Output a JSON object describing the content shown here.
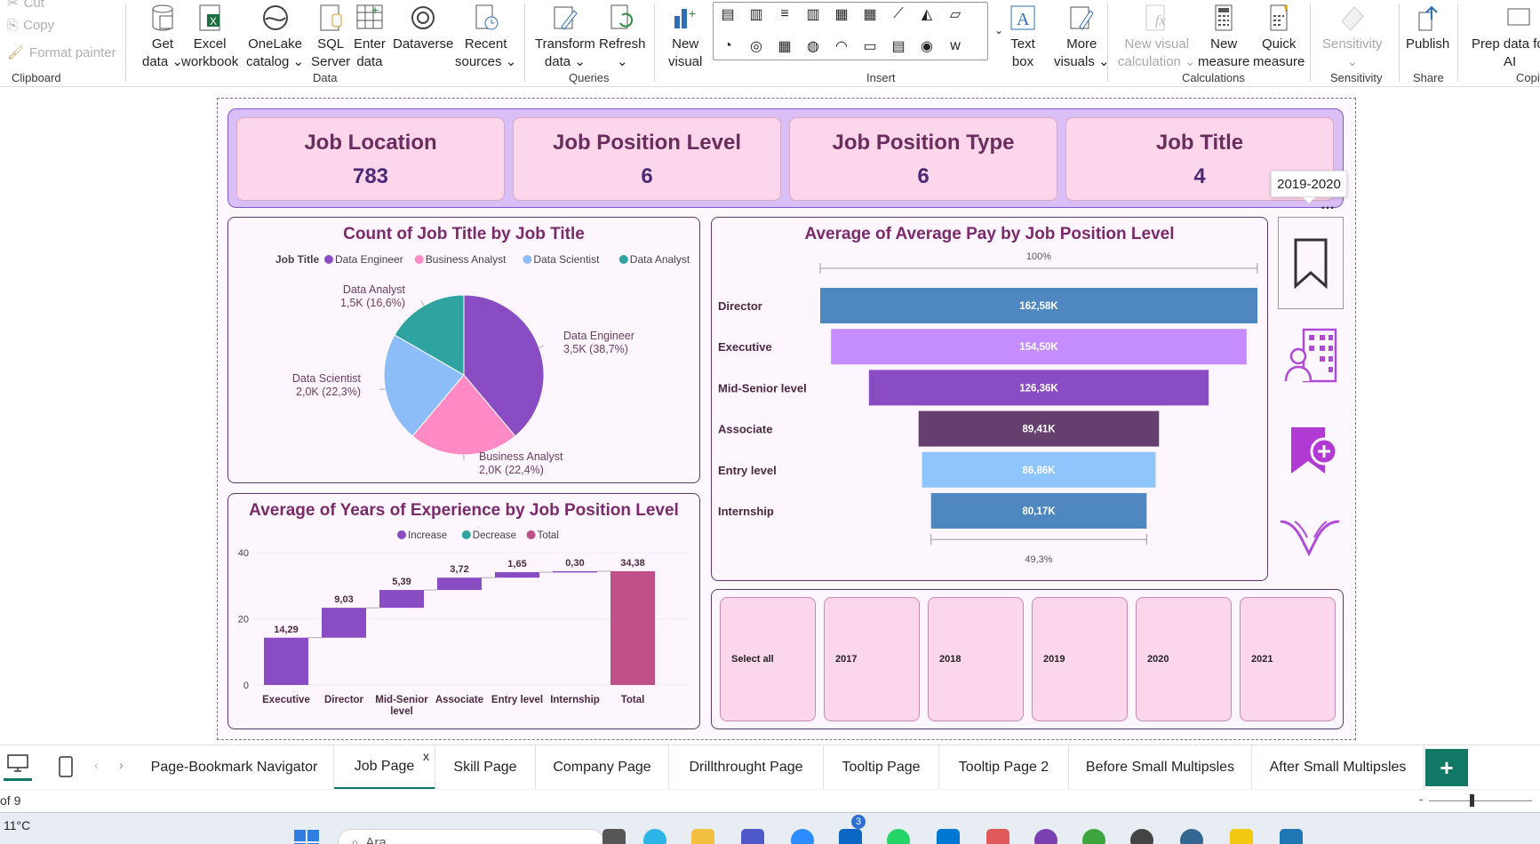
{
  "ribbon": {
    "clipboard": {
      "cut": "Cut",
      "copy": "Copy",
      "format_painter": "Format painter",
      "group": "Clipboard"
    },
    "data": {
      "buttons": [
        {
          "line1": "Get",
          "line2": "data"
        },
        {
          "line1": "Excel",
          "line2": "workbook"
        },
        {
          "line1": "OneLake",
          "line2": "catalog"
        },
        {
          "line1": "SQL",
          "line2": "Server"
        },
        {
          "line1": "Enter",
          "line2": "data"
        },
        {
          "line1": "Dataverse",
          "line2": ""
        },
        {
          "line1": "Recent",
          "line2": "sources"
        }
      ],
      "group": "Data"
    },
    "queries": {
      "buttons": [
        {
          "line1": "Transform",
          "line2": "data"
        },
        {
          "line1": "Refresh",
          "line2": ""
        }
      ],
      "group": "Queries"
    },
    "insert": {
      "new_visual": {
        "line1": "New",
        "line2": "visual"
      },
      "text_box": {
        "line1": "Text",
        "line2": "box"
      },
      "more_visuals": {
        "line1": "More",
        "line2": "visuals"
      },
      "group": "Insert"
    },
    "calculations": {
      "buttons": [
        {
          "line1": "New visual",
          "line2": "calculation"
        },
        {
          "line1": "New",
          "line2": "measure"
        },
        {
          "line1": "Quick",
          "line2": "measure"
        }
      ],
      "group": "Calculations"
    },
    "sensitivity": {
      "label": "Sensitivity",
      "group": "Sensitivity"
    },
    "share": {
      "label": "Publish",
      "group": "Share"
    },
    "copilot": {
      "line1": "Prep data fo",
      "line2": "AI",
      "group": "Copi"
    }
  },
  "kpis": [
    {
      "title": "Job Location",
      "value": "783"
    },
    {
      "title": "Job Position Level",
      "value": "6"
    },
    {
      "title": "Job Position Type",
      "value": "6"
    },
    {
      "title": "Job Title",
      "value": "4"
    }
  ],
  "tooltip": "2019-2020",
  "pie": {
    "title": "Count of Job Title by Job Title",
    "legend_title": "Job Title",
    "slice_labels": [
      {
        "name": "Data Engineer",
        "value": "3,5K (38,7%)"
      },
      {
        "name": "Business Analyst",
        "value": "2,0K (22,4%)"
      },
      {
        "name": "Data Scientist",
        "value": "2,0K (22,3%)"
      },
      {
        "name": "Data Analyst",
        "value": "1,5K (16,6%)"
      }
    ]
  },
  "funnel": {
    "title": "Average of Average Pay by Job Position Level",
    "top_pct": "100%",
    "bottom_pct": "49,3%"
  },
  "waterfall": {
    "title": "Average of Years of Experience by Job Position Level",
    "legend": [
      "Increase",
      "Decrease",
      "Total"
    ],
    "yticks": [
      "40",
      "20",
      "0"
    ]
  },
  "chart_data": [
    {
      "type": "pie",
      "title": "Count of Job Title by Job Title",
      "categories": [
        "Data Engineer",
        "Business Analyst",
        "Data Scientist",
        "Data Analyst"
      ],
      "values": [
        3500,
        2000,
        2000,
        1500
      ],
      "percents": [
        38.7,
        22.4,
        22.3,
        16.6
      ],
      "colors": [
        "#8a4cc2",
        "#ff8ac5",
        "#8dbdf8",
        "#2fa3a0"
      ],
      "legend": "top"
    },
    {
      "type": "bar",
      "subtype": "funnel",
      "title": "Average of Average Pay by Job Position Level",
      "categories": [
        "Director",
        "Executive",
        "Mid-Senior level",
        "Associate",
        "Entry level",
        "Internship"
      ],
      "values": [
        162.58,
        154.5,
        126.36,
        89.41,
        86.86,
        80.17
      ],
      "labels": [
        "162,58K",
        "154,50K",
        "126,36K",
        "89,41K",
        "86,86K",
        "80,17K"
      ],
      "colors": [
        "#4f87c1",
        "#c48cff",
        "#8a4cc2",
        "#65406f",
        "#8ec5fc",
        "#4f87c1"
      ]
    },
    {
      "type": "bar",
      "subtype": "waterfall",
      "title": "Average of Years of Experience by Job Position Level",
      "categories": [
        "Executive",
        "Director",
        "Mid-Senior level",
        "Associate",
        "Entry level",
        "Internship",
        "Total"
      ],
      "values": [
        14.29,
        9.03,
        5.39,
        3.72,
        1.65,
        0.3,
        34.38
      ],
      "labels": [
        "14,29",
        "9,03",
        "5,39",
        "3,72",
        "1,65",
        "0,30",
        "34,38"
      ],
      "ylim": [
        0,
        40
      ],
      "yticks": [
        0,
        20,
        40
      ],
      "colors": {
        "increase": "#8a4cc2",
        "decrease": "#2fa3a0",
        "total": "#c0508a"
      },
      "legend": "top"
    }
  ],
  "slicer": [
    "Select all",
    "2017",
    "2018",
    "2019",
    "2020",
    "2021"
  ],
  "tabs": [
    "Page-Bookmark Navigator",
    "Job Page",
    "Skill Page",
    "Company Page",
    "Drillthrought Page",
    "Tooltip Page",
    "Tooltip Page 2",
    "Before Small Multipsles",
    "After Small Multipsles"
  ],
  "active_tab_close": "x",
  "add_tab": "+",
  "status": {
    "page": "of 9"
  },
  "taskbar": {
    "temp": "11°C",
    "search": "Ara",
    "badge": "3"
  }
}
